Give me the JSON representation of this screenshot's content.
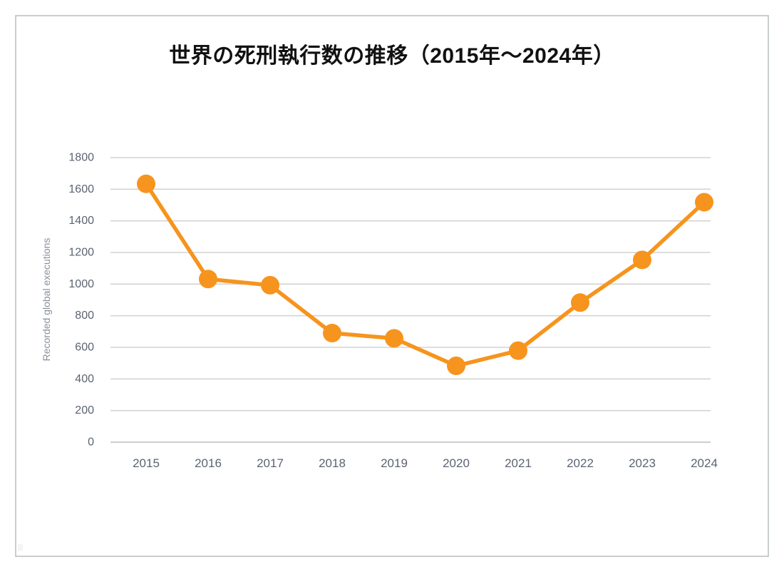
{
  "chart_data": {
    "type": "line",
    "title": "世界の死刑執行数の推移（2015年〜2024年）",
    "ylabel": "Recorded global executions",
    "xlabel": "",
    "categories": [
      "2015",
      "2016",
      "2017",
      "2018",
      "2019",
      "2020",
      "2021",
      "2022",
      "2023",
      "2024"
    ],
    "series": [
      {
        "name": "Recorded global executions",
        "values": [
          1634,
          1032,
          993,
          690,
          657,
          483,
          579,
          883,
          1153,
          1518
        ]
      }
    ],
    "ylim": [
      0,
      1800
    ],
    "yticks": [
      0,
      200,
      400,
      600,
      800,
      1000,
      1200,
      1400,
      1600,
      1800
    ],
    "grid": "horizontal gridlines on, no vertical gridlines",
    "legend_position": "none",
    "marker_style": "filled circle",
    "colors": {
      "line": "#F6941E",
      "marker": "#F6941E",
      "gridline": "#D3D3D3",
      "zero_line": "#BFBFBF",
      "tick_label": "#5B6472",
      "axis_title": "#8A9099",
      "title": "#111111",
      "frame_border": "#C9CDD0",
      "background": "#FFFFFF"
    }
  }
}
